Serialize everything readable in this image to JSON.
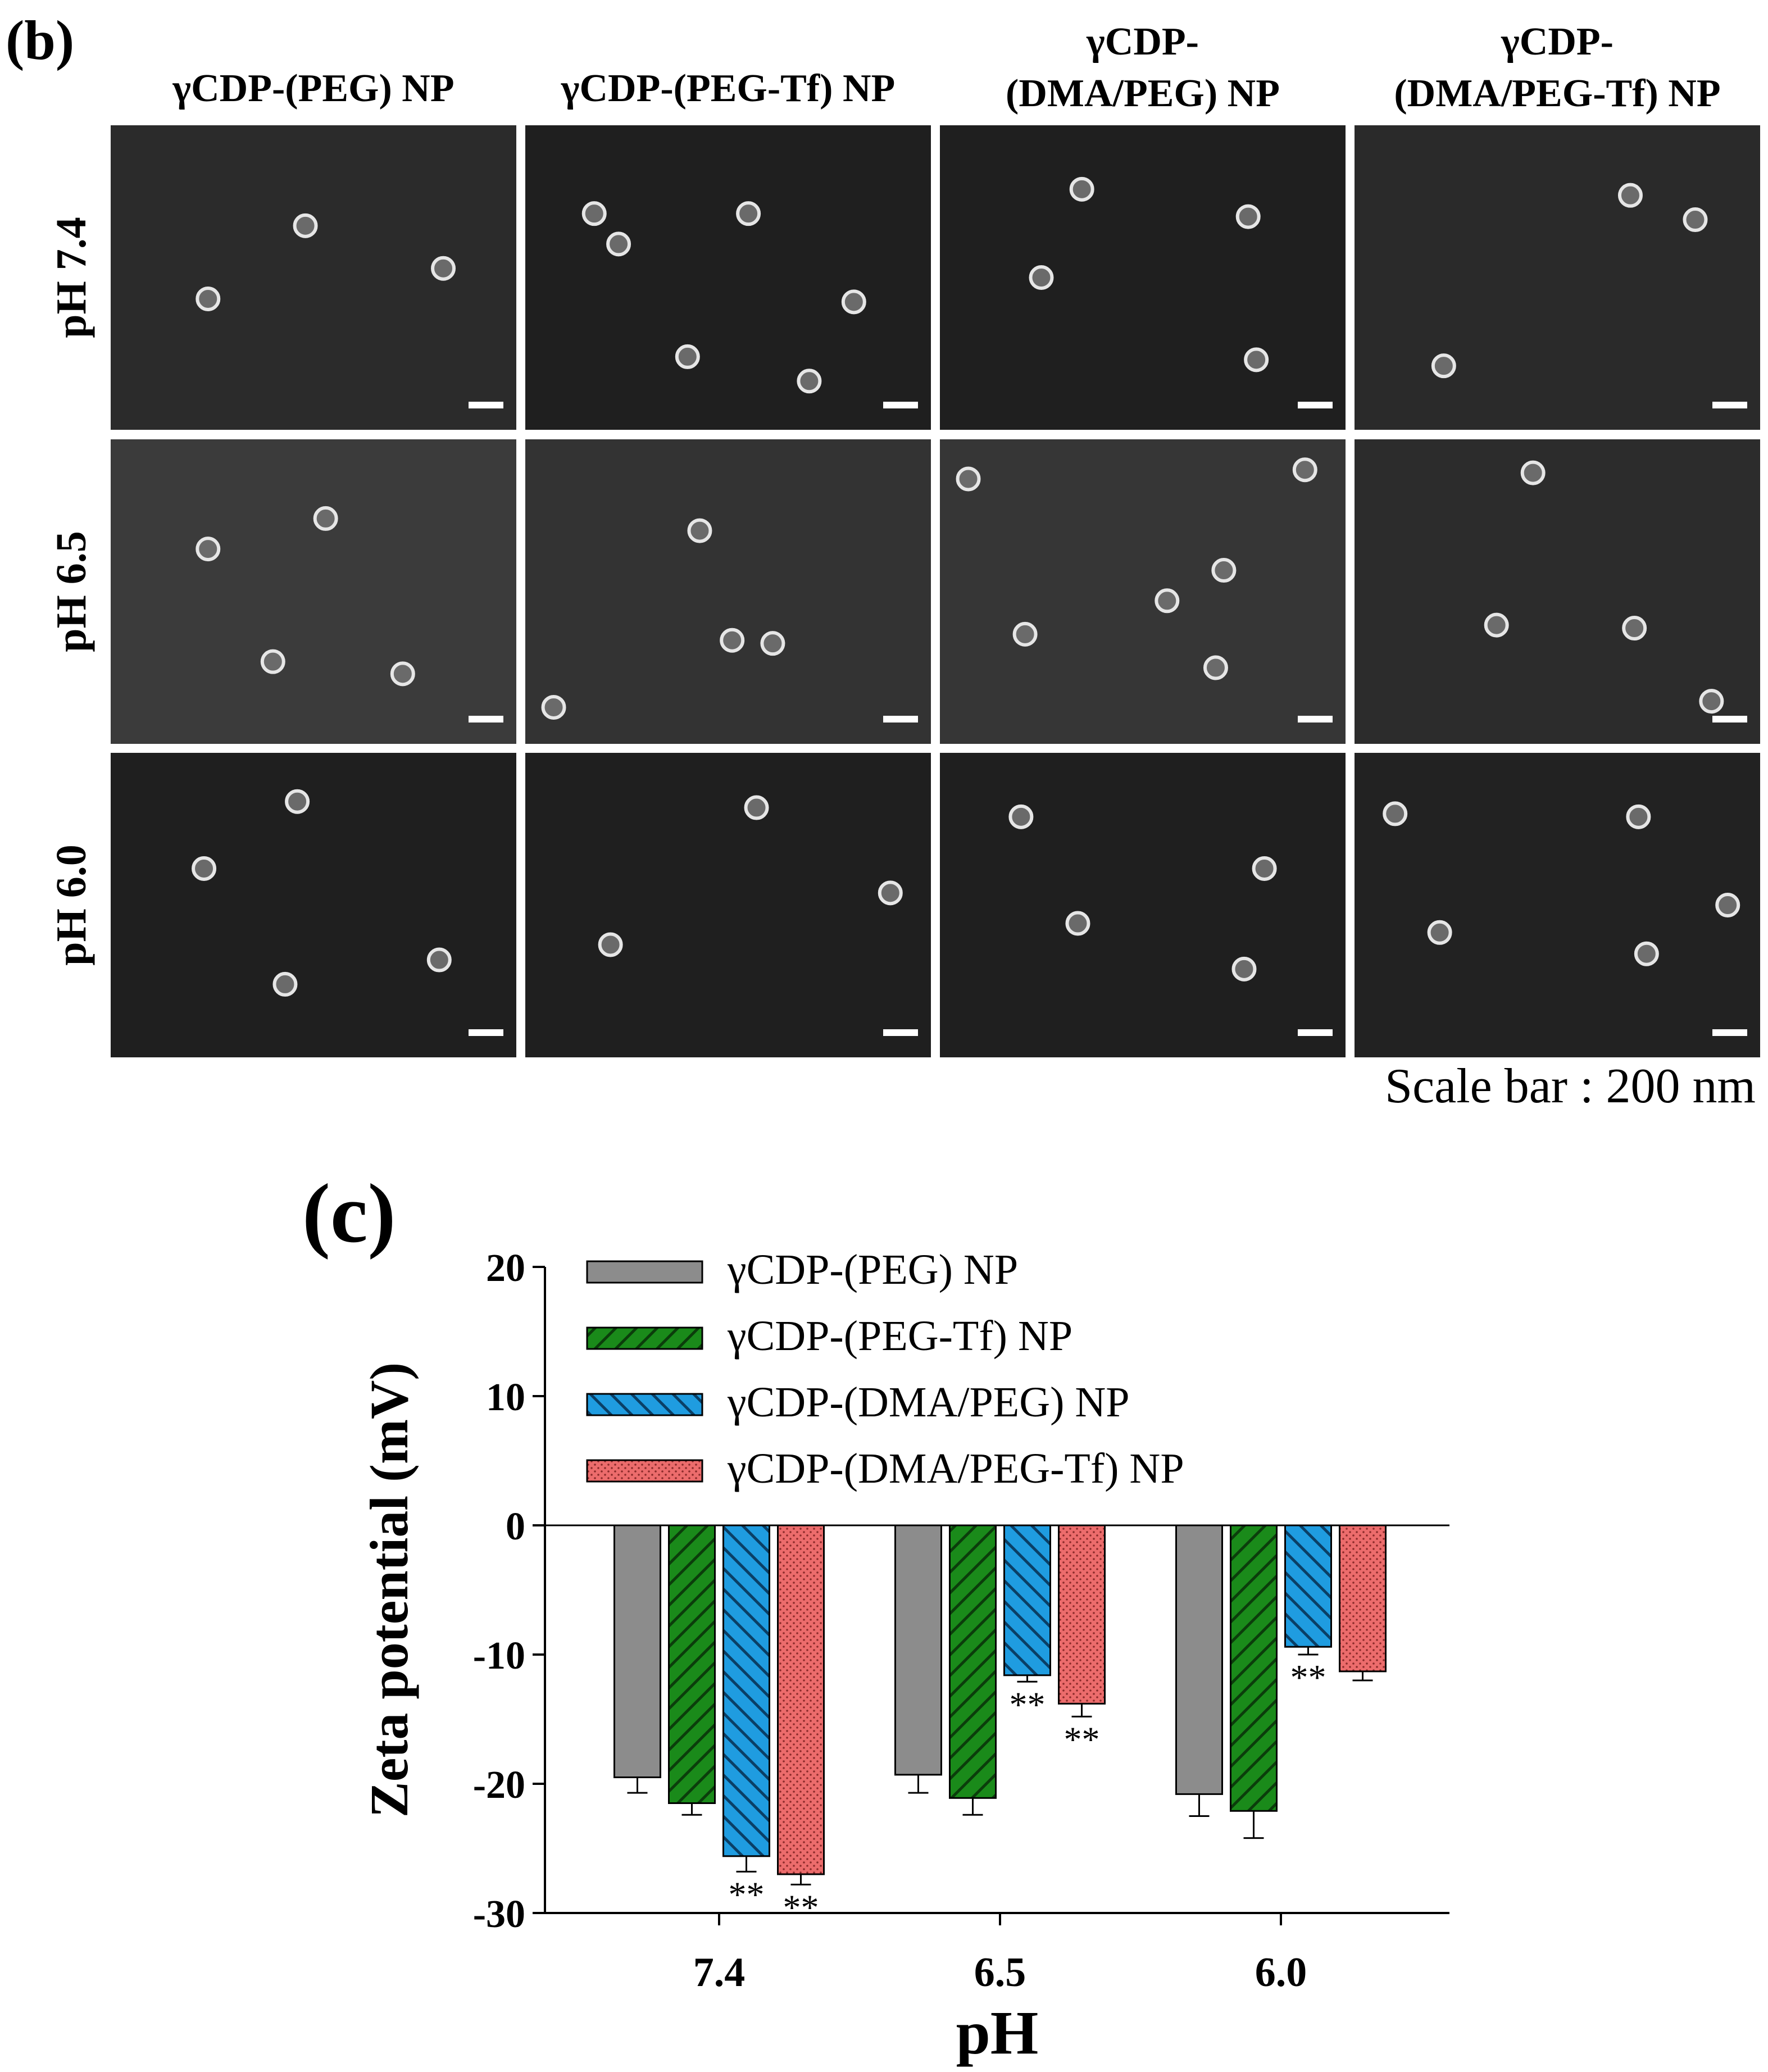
{
  "panel_b": {
    "label": "(b)",
    "column_headers": [
      [
        "γCDP-(PEG) NP"
      ],
      [
        "γCDP-(PEG-Tf)  NP"
      ],
      [
        "γCDP-",
        "(DMA/PEG) NP"
      ],
      [
        "γCDP-",
        "(DMA/PEG-Tf) NP"
      ]
    ],
    "row_labels": [
      "pH 7.4",
      "pH 6.5",
      "pH 6.0"
    ],
    "tiles": [
      [
        {
          "bg": "#2b2b2b",
          "dots": [
            [
              0.24,
              0.57
            ],
            [
              0.48,
              0.33
            ],
            [
              0.82,
              0.47
            ]
          ]
        },
        {
          "bg": "#1f1f1f",
          "dots": [
            [
              0.17,
              0.29
            ],
            [
              0.23,
              0.39
            ],
            [
              0.55,
              0.29
            ],
            [
              0.4,
              0.76
            ],
            [
              0.81,
              0.58
            ],
            [
              0.7,
              0.84
            ]
          ]
        },
        {
          "bg": "#1f1f1f",
          "dots": [
            [
              0.35,
              0.21
            ],
            [
              0.25,
              0.5
            ],
            [
              0.76,
              0.3
            ],
            [
              0.78,
              0.77
            ]
          ]
        },
        {
          "bg": "#2a2a2a",
          "dots": [
            [
              0.68,
              0.23
            ],
            [
              0.84,
              0.31
            ],
            [
              0.22,
              0.79
            ]
          ]
        }
      ],
      [
        {
          "bg": "#3b3b3b",
          "dots": [
            [
              0.24,
              0.36
            ],
            [
              0.53,
              0.26
            ],
            [
              0.4,
              0.73
            ],
            [
              0.72,
              0.77
            ]
          ]
        },
        {
          "bg": "#333333",
          "dots": [
            [
              0.43,
              0.3
            ],
            [
              0.51,
              0.66
            ],
            [
              0.61,
              0.67
            ],
            [
              0.07,
              0.88
            ]
          ]
        },
        {
          "bg": "#363636",
          "dots": [
            [
              0.07,
              0.13
            ],
            [
              0.9,
              0.1
            ],
            [
              0.7,
              0.43
            ],
            [
              0.56,
              0.53
            ],
            [
              0.21,
              0.64
            ],
            [
              0.68,
              0.75
            ]
          ]
        },
        {
          "bg": "#2c2c2c",
          "dots": [
            [
              0.44,
              0.11
            ],
            [
              0.35,
              0.61
            ],
            [
              0.69,
              0.62
            ],
            [
              0.88,
              0.86
            ]
          ]
        }
      ],
      [
        {
          "bg": "#1f1f1f",
          "dots": [
            [
              0.46,
              0.16
            ],
            [
              0.23,
              0.38
            ],
            [
              0.43,
              0.76
            ],
            [
              0.81,
              0.68
            ]
          ]
        },
        {
          "bg": "#1f1f1f",
          "dots": [
            [
              0.57,
              0.18
            ],
            [
              0.9,
              0.46
            ],
            [
              0.21,
              0.63
            ]
          ]
        },
        {
          "bg": "#1f1f1f",
          "dots": [
            [
              0.2,
              0.21
            ],
            [
              0.8,
              0.38
            ],
            [
              0.34,
              0.56
            ],
            [
              0.75,
              0.71
            ]
          ]
        },
        {
          "bg": "#222222",
          "dots": [
            [
              0.1,
              0.2
            ],
            [
              0.7,
              0.21
            ],
            [
              0.92,
              0.5
            ],
            [
              0.21,
              0.59
            ],
            [
              0.72,
              0.66
            ]
          ]
        }
      ]
    ],
    "scale_bar_text": "Scale bar : 200 nm"
  },
  "panel_c": {
    "label": "(c)"
  },
  "chart_data": {
    "type": "bar",
    "title": "",
    "xlabel": "pH",
    "ylabel": "Zeta potential (mV)",
    "categories": [
      "7.4",
      "6.5",
      "6.0"
    ],
    "ylim": [
      -30,
      20
    ],
    "yticks": [
      20,
      10,
      0,
      -10,
      -20,
      -30
    ],
    "grid": false,
    "legend_position": "top",
    "series": [
      {
        "name": "γCDP-(PEG) NP",
        "values": [
          -19.5,
          -19.3,
          -20.8
        ],
        "errors": [
          1.2,
          1.4,
          1.7
        ],
        "color": "#8c8c8c",
        "pattern": "solid",
        "significance": [
          "",
          "",
          ""
        ]
      },
      {
        "name": "γCDP-(PEG-Tf) NP",
        "values": [
          -21.5,
          -21.1,
          -22.1
        ],
        "errors": [
          0.9,
          1.3,
          2.1
        ],
        "color": "#1a8a1a",
        "pattern": "diag-right",
        "significance": [
          "",
          "",
          ""
        ]
      },
      {
        "name": "γCDP-(DMA/PEG) NP",
        "values": [
          -25.6,
          -11.6,
          -9.4
        ],
        "errors": [
          1.2,
          0.5,
          0.6
        ],
        "color": "#1f9ce0",
        "pattern": "diag-left",
        "significance": [
          "**",
          "**",
          "**"
        ]
      },
      {
        "name": "γCDP-(DMA/PEG-Tf) NP",
        "values": [
          -27.0,
          -13.8,
          -11.3
        ],
        "errors": [
          0.8,
          1.0,
          0.7
        ],
        "color": "#ec6c6c",
        "pattern": "dots",
        "significance": [
          "**",
          "**",
          ""
        ]
      }
    ]
  }
}
